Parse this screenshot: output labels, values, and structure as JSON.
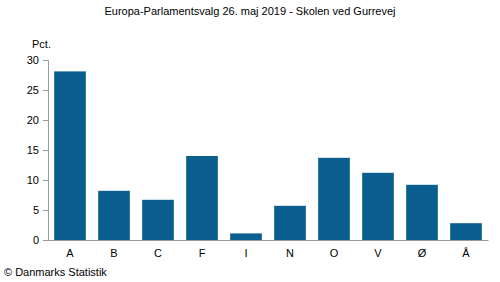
{
  "chart_data": {
    "type": "bar",
    "title": "Europa-Parlamentsvalg 26. maj 2019 - Skolen ved Gurrevej",
    "ylabel": "Pct.",
    "source": "© Danmarks Statistik",
    "categories": [
      "A",
      "B",
      "C",
      "F",
      "I",
      "N",
      "O",
      "V",
      "Ø",
      "Å"
    ],
    "values": [
      28.1,
      8.2,
      6.7,
      14.0,
      1.1,
      5.7,
      13.7,
      11.2,
      9.2,
      2.8
    ],
    "color": "#0a5f8f",
    "ylim": [
      0,
      30
    ],
    "yticks": [
      0,
      5,
      10,
      15,
      20,
      25,
      30
    ],
    "grid": false
  }
}
